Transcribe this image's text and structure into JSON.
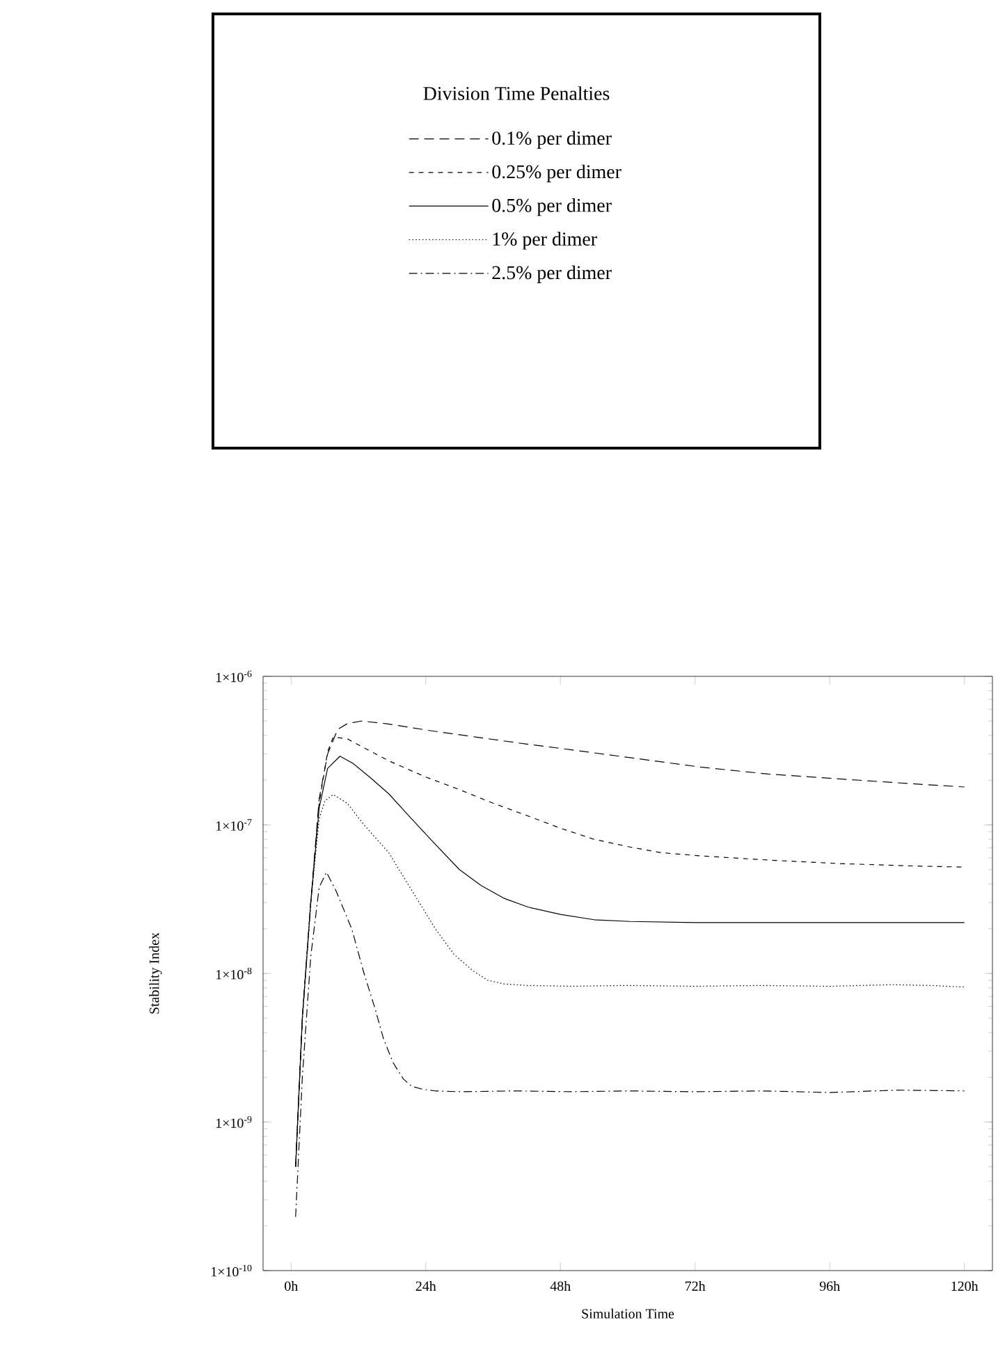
{
  "chart_data": {
    "type": "line",
    "xlabel": "Simulation Time",
    "ylabel": "Stability Index",
    "legend_title": "Division Time Penalties",
    "legend": "top",
    "log": "y",
    "grid": false,
    "xlim": [
      -5,
      125
    ],
    "ylim": [
      1e-10,
      1e-06
    ],
    "xticks": [
      {
        "value": 0,
        "label": "0h"
      },
      {
        "value": 24,
        "label": "24h"
      },
      {
        "value": 48,
        "label": "48h"
      },
      {
        "value": 72,
        "label": "72h"
      },
      {
        "value": 96,
        "label": "96h"
      },
      {
        "value": 120,
        "label": "120h"
      }
    ],
    "yticks": [
      {
        "value": 1e-10,
        "label": "1×10$^{-10}$"
      },
      {
        "value": 1e-09,
        "label": "1×10$^{-9}$"
      },
      {
        "value": 1e-08,
        "label": "1×10$^{-8}$"
      },
      {
        "value": 1e-07,
        "label": "1×10$^{-7}$"
      },
      {
        "value": 1e-06,
        "label": "1×10$^{-6}$"
      }
    ],
    "series": [
      {
        "name": "0.1% per dimer",
        "color": "#000000",
        "line_style": "longdash",
        "x": [
          0.8,
          2,
          3.5,
          5,
          6.5,
          8.3,
          10,
          12.5,
          17,
          25,
          33,
          42,
          50,
          60,
          73,
          85,
          97,
          110,
          120
        ],
        "values": [
          5e-10,
          5e-09,
          3e-08,
          1.5e-07,
          3e-07,
          4.4e-07,
          4.8e-07,
          5e-07,
          4.8e-07,
          4.3e-07,
          3.9e-07,
          3.5e-07,
          3.2e-07,
          2.85e-07,
          2.45e-07,
          2.2e-07,
          2.05e-07,
          1.9e-07,
          1.8e-07
        ]
      },
      {
        "name": "0.25% per dimer",
        "color": "#000000",
        "line_style": "dashed",
        "x": [
          0.8,
          2,
          3.5,
          5,
          6.5,
          7.5,
          10,
          13,
          17.4,
          24,
          29.8,
          36,
          42.2,
          48,
          54,
          60.4,
          66,
          72.7,
          85,
          97.4,
          110,
          120
        ],
        "values": [
          5e-10,
          5e-09,
          3e-08,
          1.4e-07,
          3.1e-07,
          3.9e-07,
          3.8e-07,
          3.3e-07,
          2.7e-07,
          2.1e-07,
          1.74e-07,
          1.4e-07,
          1.15e-07,
          9.5e-08,
          8e-08,
          7.1e-08,
          6.5e-08,
          6.2e-08,
          5.8e-08,
          5.5e-08,
          5.3e-08,
          5.2e-08
        ]
      },
      {
        "name": "0.5% per dimer",
        "color": "#000000",
        "line_style": "solid",
        "x": [
          0.8,
          2,
          3.5,
          5,
          6.5,
          8.7,
          11,
          14,
          17.4,
          21,
          25.7,
          30,
          33.9,
          38,
          42.2,
          48,
          54,
          60.4,
          72,
          84,
          96,
          108,
          120
        ],
        "values": [
          5e-10,
          5e-09,
          3e-08,
          1.3e-07,
          2.4e-07,
          2.9e-07,
          2.6e-07,
          2.1e-07,
          1.62e-07,
          1.15e-07,
          7.4e-08,
          5e-08,
          3.9e-08,
          3.2e-08,
          2.8e-08,
          2.5e-08,
          2.3e-08,
          2.24e-08,
          2.2e-08,
          2.2e-08,
          2.2e-08,
          2.2e-08,
          2.2e-08
        ]
      },
      {
        "name": "1% per dimer",
        "color": "#000000",
        "line_style": "dotted",
        "x": [
          0.8,
          2,
          3.5,
          5,
          6,
          7.5,
          10,
          13,
          17.4,
          21,
          25.7,
          29,
          32.3,
          35,
          38,
          42.2,
          50,
          60,
          72,
          84,
          96,
          107,
          114,
          120
        ],
        "values": [
          5e-10,
          5e-09,
          3e-08,
          1.1e-07,
          1.45e-07,
          1.6e-07,
          1.4e-07,
          1e-07,
          6.5e-08,
          3.9e-08,
          2e-08,
          1.35e-08,
          1.05e-08,
          9e-09,
          8.5e-09,
          8.3e-09,
          8.2e-09,
          8.3e-09,
          8.2e-09,
          8.3e-09,
          8.2e-09,
          8.4e-09,
          8.3e-09,
          8.1e-09
        ]
      },
      {
        "name": "2.5% per dimer",
        "color": "#000000",
        "line_style": "dashdot",
        "x": [
          0.8,
          2,
          3.5,
          5,
          6.3,
          8,
          10.8,
          13,
          14.9,
          16.5,
          18.2,
          20,
          21.5,
          23.5,
          25.7,
          30,
          40,
          50,
          60,
          72,
          84,
          96,
          108,
          120
        ],
        "values": [
          2.3e-10,
          2e-09,
          1.3e-08,
          3.8e-08,
          4.8e-08,
          3.6e-08,
          2e-08,
          1e-08,
          5.9e-09,
          3.6e-09,
          2.5e-09,
          1.95e-09,
          1.74e-09,
          1.66e-09,
          1.62e-09,
          1.6e-09,
          1.62e-09,
          1.6e-09,
          1.62e-09,
          1.6e-09,
          1.62e-09,
          1.58e-09,
          1.64e-09,
          1.62e-09
        ]
      }
    ]
  }
}
